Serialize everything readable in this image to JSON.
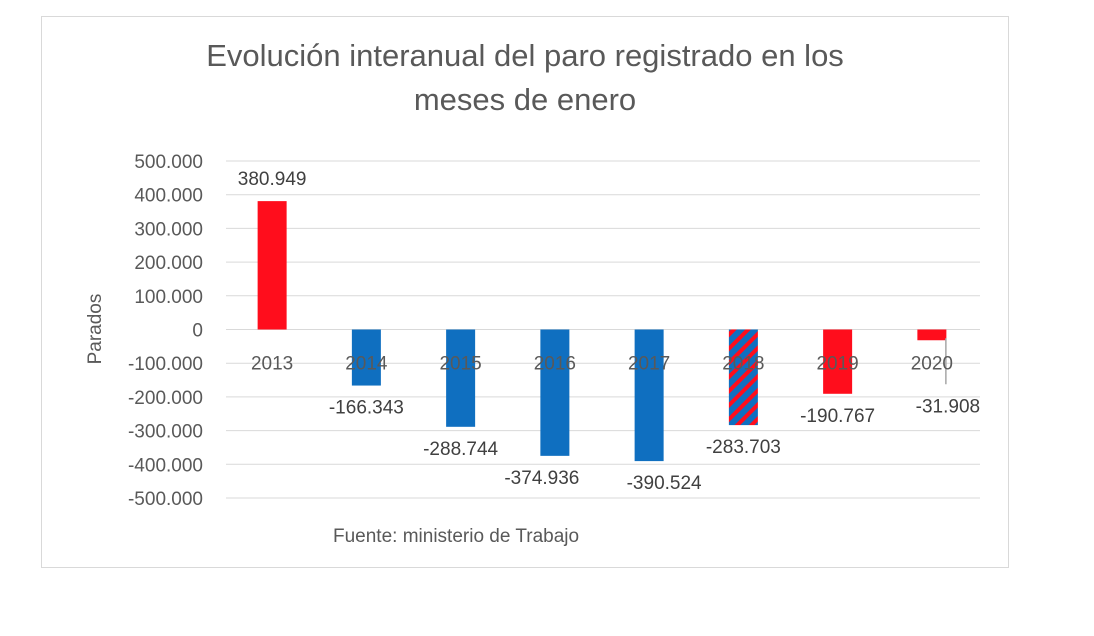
{
  "chart_data": {
    "type": "bar",
    "title": "Evolución interanual del paro registrado en los meses de enero",
    "title_lines": [
      "Evolución interanual del paro registrado en los",
      "meses de enero"
    ],
    "xlabel": "",
    "ylabel": "Parados",
    "source": "Fuente: ministerio de Trabajo",
    "ylim": [
      -500000,
      500000
    ],
    "yticks": [
      500000,
      400000,
      300000,
      200000,
      100000,
      0,
      -100000,
      -200000,
      -300000,
      -400000,
      -500000
    ],
    "ytick_labels": [
      "500.000",
      "400.000",
      "300.000",
      "200.000",
      "100.000",
      "0",
      "-100.000",
      "-200.000",
      "-300.000",
      "-400.000",
      "-500.000"
    ],
    "categories": [
      "2013",
      "2014",
      "2015",
      "2016",
      "2017",
      "2018",
      "2019",
      "2020"
    ],
    "values": [
      380949,
      -166343,
      -288744,
      -374936,
      -390524,
      -283703,
      -190767,
      -31908
    ],
    "value_labels": [
      "380.949",
      "-166.343",
      "-288.744",
      "-374.936",
      "-390.524",
      "-283.703",
      "-190.767",
      "-31.908"
    ],
    "bar_styles": [
      "red",
      "blue",
      "blue",
      "blue",
      "blue",
      "hatched",
      "red",
      "red"
    ],
    "colors": {
      "red": "#ff0d1c",
      "blue": "#0f6fc0",
      "grid": "#d9d9d9",
      "text": "#595959",
      "error_bar": "#a6a6a6"
    },
    "grid": true,
    "legend": "none"
  }
}
